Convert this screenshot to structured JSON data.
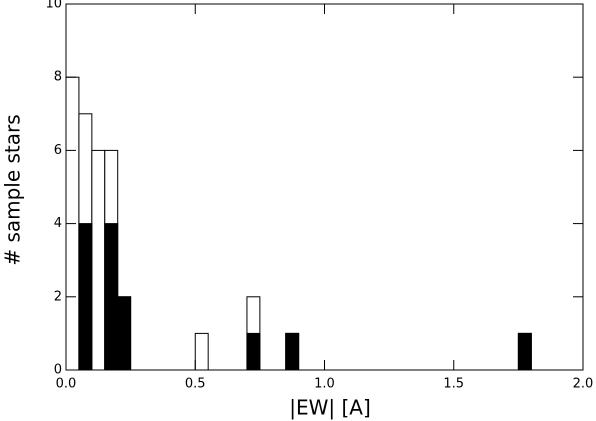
{
  "chart_data": {
    "type": "histogram",
    "xlabel": "|EW| [A]",
    "ylabel": "# sample stars",
    "bins": [
      0,
      0.05,
      0.1,
      0.15,
      0.2,
      0.25,
      0.3,
      0.35,
      0.4,
      0.45,
      0.5,
      0.55,
      0.6,
      0.65,
      0.7,
      0.75,
      0.8,
      0.85,
      0.9,
      0.95,
      1.0,
      1.05,
      1.1,
      1.15,
      1.2,
      1.25,
      1.3,
      1.35,
      1.4,
      1.45,
      1.5,
      1.55,
      1.6,
      1.65,
      1.7,
      1.75,
      1.8
    ],
    "series": [
      {
        "color": "#ffffff",
        "values": [
          8,
          7,
          6,
          6,
          2,
          0,
          0,
          0,
          0,
          0,
          1,
          0,
          0,
          0,
          2,
          0,
          0,
          1,
          0,
          0,
          0,
          0,
          0,
          0,
          0,
          0,
          0,
          0,
          0,
          0,
          0,
          0,
          0,
          0,
          0,
          1
        ]
      },
      {
        "color": "#000000",
        "values": [
          0,
          4,
          0,
          4,
          2,
          0,
          0,
          0,
          0,
          0,
          0,
          0,
          0,
          0,
          1,
          0,
          0,
          1,
          0,
          0,
          0,
          0,
          0,
          0,
          0,
          0,
          0,
          0,
          0,
          0,
          0,
          0,
          0,
          0,
          0,
          1
        ]
      }
    ],
    "xlim": [
      0,
      2
    ],
    "ylim": [
      0,
      10
    ],
    "xticks": [
      {
        "value": 0,
        "label": "0.0"
      },
      0.5,
      {
        "value": 1,
        "label": "1.0"
      },
      1.5,
      {
        "value": 2,
        "label": "2.0"
      }
    ],
    "yticks": [
      0,
      2,
      4,
      6,
      8,
      10
    ]
  }
}
